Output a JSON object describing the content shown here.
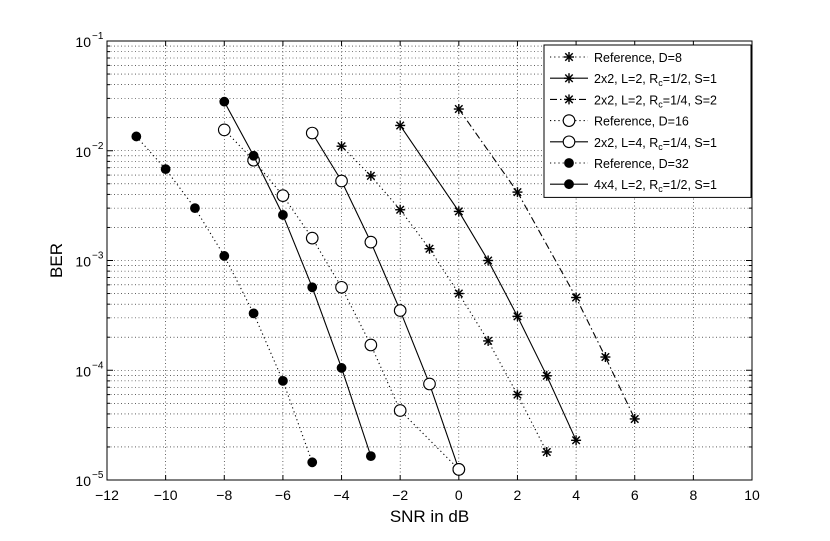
{
  "chart_data": {
    "type": "line",
    "xlabel": "SNR in dB",
    "ylabel": "BER",
    "xlim": [
      -12,
      10
    ],
    "ylim": [
      1e-05,
      0.1
    ],
    "yscale": "log",
    "grid": true,
    "legend_position": "top-right",
    "x_ticks": [
      -12,
      -10,
      -8,
      -6,
      -4,
      -2,
      0,
      2,
      4,
      6,
      8,
      10
    ],
    "x_tick_labels": [
      "−12",
      "−10",
      "−8",
      "−6",
      "−4",
      "−2",
      "0",
      "2",
      "4",
      "6",
      "8",
      "10"
    ],
    "y_ticks": [
      {
        "value": 1e-05,
        "base": "10",
        "exp": "−5"
      },
      {
        "value": 0.0001,
        "base": "10",
        "exp": "−4"
      },
      {
        "value": 0.001,
        "base": "10",
        "exp": "−3"
      },
      {
        "value": 0.01,
        "base": "10",
        "exp": "−2"
      },
      {
        "value": 0.1,
        "base": "10",
        "exp": "−1"
      }
    ],
    "series": [
      {
        "name": "Reference, D=8",
        "legend_label": [
          {
            "t": "Reference, D=8"
          }
        ],
        "line": "dotted",
        "marker": "star",
        "x": [
          -4,
          -3,
          -2,
          -1,
          0,
          1,
          2,
          3
        ],
        "y": [
          0.011,
          0.0059,
          0.0029,
          0.00128,
          0.0005,
          0.000185,
          6e-05,
          1.8e-05
        ]
      },
      {
        "name": "2x2, L=2, Rc=1/2, S=1",
        "legend_label": [
          {
            "t": "2x2, L=2, R"
          },
          {
            "t": "c",
            "sub": true
          },
          {
            "t": "=1/2, S=1"
          }
        ],
        "line": "solid",
        "marker": "star",
        "x": [
          -2,
          0,
          1,
          2,
          3,
          4
        ],
        "y": [
          0.017,
          0.0028,
          0.001,
          0.00031,
          8.9e-05,
          2.3e-05
        ]
      },
      {
        "name": "2x2, L=2, Rc=1/4, S=2",
        "legend_label": [
          {
            "t": "2x2, L=2, R"
          },
          {
            "t": "c",
            "sub": true
          },
          {
            "t": "=1/4, S=2"
          }
        ],
        "line": "dashdot",
        "marker": "star",
        "x": [
          0,
          2,
          4,
          5,
          6
        ],
        "y": [
          0.024,
          0.0042,
          0.00046,
          0.000132,
          3.6e-05
        ]
      },
      {
        "name": "Reference, D=16",
        "legend_label": [
          {
            "t": "Reference, D=16"
          }
        ],
        "line": "dotted",
        "marker": "circle-open",
        "x": [
          -8,
          -7,
          -6,
          -5,
          -4,
          -3,
          -2,
          0
        ],
        "y": [
          0.0155,
          0.0082,
          0.0039,
          0.0016,
          0.00057,
          0.00017,
          4.3e-05,
          1.25e-05
        ]
      },
      {
        "name": "2x2, L=4, Rc=1/4, S=1",
        "legend_label": [
          {
            "t": "2x2, L=4, R"
          },
          {
            "t": "c",
            "sub": true
          },
          {
            "t": "=1/4, S=1"
          }
        ],
        "line": "solid",
        "marker": "circle-open",
        "x": [
          -5,
          -4,
          -3,
          -2,
          -1,
          0
        ],
        "y": [
          0.0145,
          0.0053,
          0.00147,
          0.00035,
          7.5e-05,
          1.25e-05
        ]
      },
      {
        "name": "Reference, D=32",
        "legend_label": [
          {
            "t": "Reference, D=32"
          }
        ],
        "line": "dotted",
        "marker": "circle-filled",
        "x": [
          -11,
          -10,
          -9,
          -8,
          -7,
          -6,
          -5
        ],
        "y": [
          0.0135,
          0.0068,
          0.003,
          0.0011,
          0.00033,
          8e-05,
          1.45e-05
        ]
      },
      {
        "name": "4x4, L=2, Rc=1/2, S=1",
        "legend_label": [
          {
            "t": "4x4, L=2, R"
          },
          {
            "t": "c",
            "sub": true
          },
          {
            "t": "=1/2, S=1"
          }
        ],
        "line": "solid",
        "marker": "circle-filled",
        "x": [
          -8,
          -7,
          -6,
          -5,
          -4,
          -3
        ],
        "y": [
          0.028,
          0.009,
          0.0026,
          0.00057,
          0.000105,
          1.65e-05
        ]
      }
    ]
  }
}
